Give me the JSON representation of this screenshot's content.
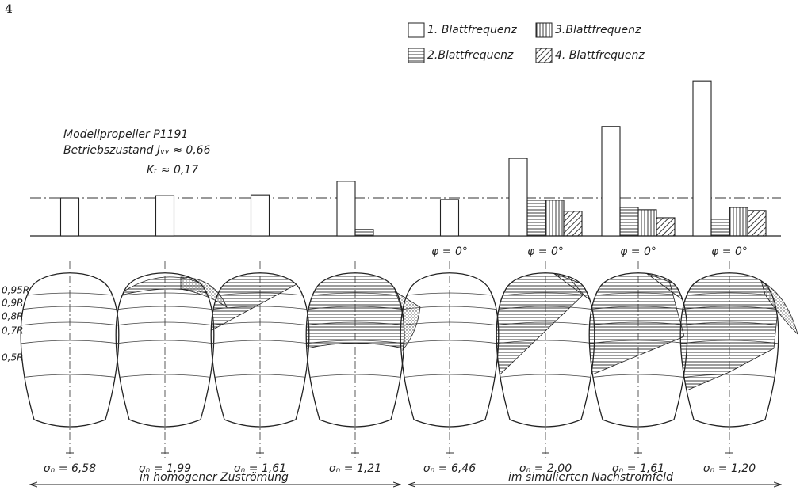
{
  "page_number": "4",
  "annotation": [
    "Modellpropeller P1191",
    "Betriebszustand Jᵥᵥ ≈ 0,66",
    "Kₜ ≈ 0,17"
  ],
  "chart_data": {
    "type": "bar",
    "categories": [
      "σₙ = 6,58",
      "σₙ = 1,99",
      "σₙ = 1,61",
      "σₙ = 1,21",
      "σₙ = 6,46",
      "σₙ = 2,00",
      "σₙ = 1,61",
      "σₙ = 1,20"
    ],
    "reference_line": 1,
    "series": [
      {
        "name": "1. Blattfrequenz",
        "fill": "blank",
        "values": [
          1.0,
          1.06,
          1.08,
          1.44,
          0.96,
          2.04,
          2.88,
          4.08
        ]
      },
      {
        "name": "2.Blattfrequenz",
        "fill": "horizontal",
        "values": [
          null,
          null,
          null,
          0.17,
          null,
          0.94,
          0.75,
          0.44
        ]
      },
      {
        "name": "3.Blattfrequenz",
        "fill": "vertical",
        "values": [
          null,
          null,
          null,
          null,
          null,
          0.94,
          0.69,
          0.75
        ]
      },
      {
        "name": "4. Blattfrequenz",
        "fill": "diagonal",
        "values": [
          null,
          null,
          null,
          null,
          null,
          0.65,
          0.48,
          0.67
        ]
      }
    ]
  },
  "radius_labels": [
    "0,95R",
    "0,9R",
    "0,8R",
    "0,7R",
    "0,5R"
  ],
  "phi_label": "φ = 0°",
  "ranges": [
    "in homogener Zuströmung",
    "im simulierten Nachstromfeld"
  ]
}
